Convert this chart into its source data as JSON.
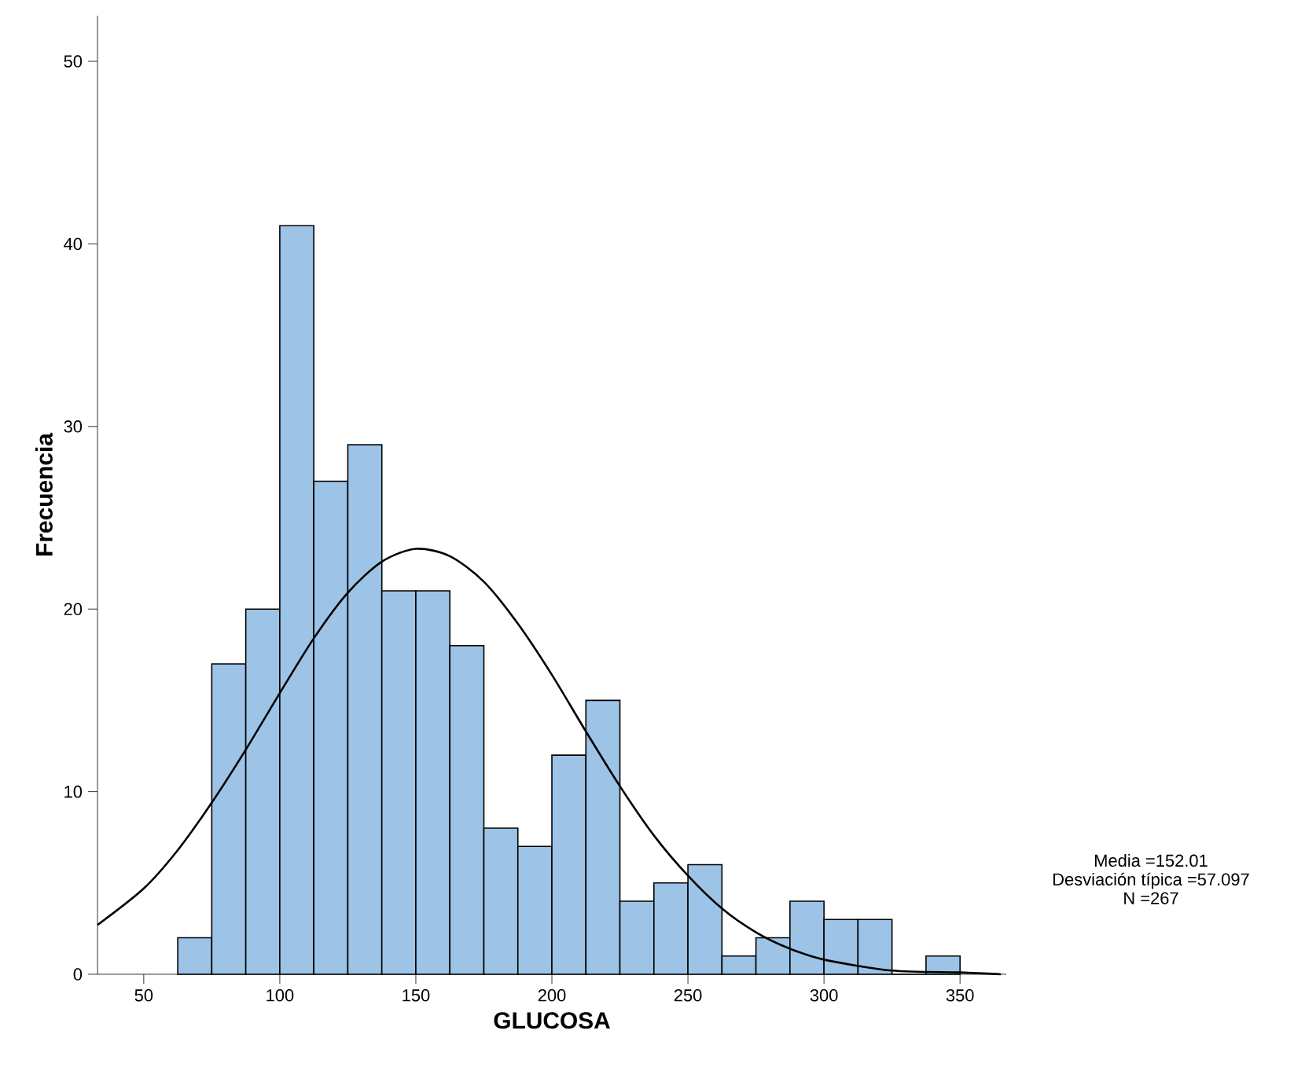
{
  "chart_data": {
    "type": "histogram",
    "xlabel": "GLUCOSA",
    "ylabel": "Frecuencia",
    "bins": [
      62.5,
      75,
      87.5,
      100,
      112.5,
      125,
      137.5,
      150,
      162.5,
      175,
      187.5,
      200,
      212.5,
      225,
      237.5,
      250,
      262.5,
      275,
      287.5,
      300,
      312.5,
      325,
      337.5,
      350
    ],
    "values": [
      2,
      17,
      20,
      41,
      27,
      29,
      21,
      21,
      18,
      8,
      7,
      12,
      15,
      4,
      5,
      6,
      1,
      2,
      4,
      3,
      3,
      0,
      1
    ],
    "color": "#9dc3e6",
    "series": [
      {
        "type": "line",
        "color": "#000000",
        "x": [
          33,
          50,
          62.5,
          75,
          87.5,
          100,
          112.5,
          125,
          137.5,
          150,
          162.5,
          175,
          187.5,
          200,
          212.5,
          225,
          237.5,
          250,
          262.5,
          275,
          287.5,
          300,
          325,
          350,
          365
        ],
        "values": [
          2.7,
          4.7,
          6.8,
          9.4,
          12.3,
          15.4,
          18.4,
          20.9,
          22.6,
          23.3,
          22.9,
          21.5,
          19.2,
          16.4,
          13.3,
          10.3,
          7.6,
          5.4,
          3.6,
          2.3,
          1.4,
          0.8,
          0.2,
          0.1,
          0
        ]
      }
    ],
    "xlim": [
      33,
      367
    ],
    "ylim": [
      0,
      52.5
    ],
    "xticks": [
      50,
      100,
      150,
      200,
      250,
      300,
      350
    ],
    "yticks": [
      0,
      10,
      20,
      30,
      40,
      50
    ],
    "annotations": [
      "Media =152.01",
      "Desviación típica =57.097",
      "N =267"
    ]
  }
}
